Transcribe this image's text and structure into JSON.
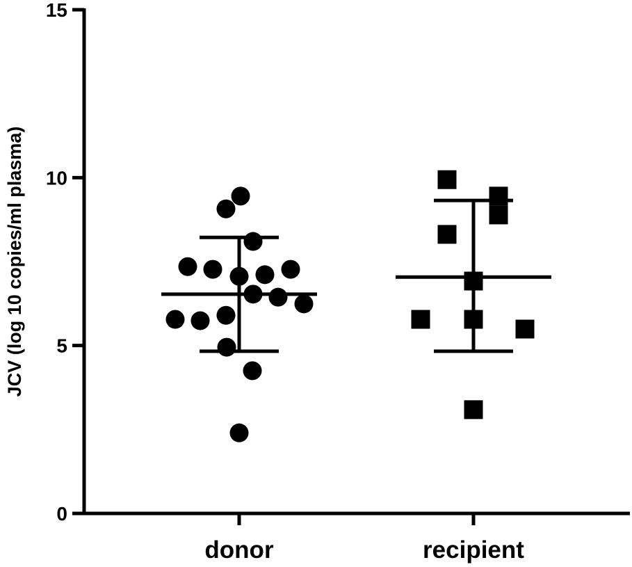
{
  "chart_data": {
    "type": "scatter",
    "subtype": "dot-plot with mean and SD",
    "title": "",
    "xlabel": "",
    "ylabel": "JCV (log 10 copies/ml plasma)",
    "ylim": [
      0,
      15
    ],
    "yticks": [
      0,
      5,
      10,
      15
    ],
    "grid": false,
    "categories": [
      "donor",
      "recipient"
    ],
    "series": [
      {
        "name": "donor",
        "marker": "circle",
        "values": [
          9.45,
          9.07,
          8.1,
          7.35,
          7.27,
          7.06,
          7.11,
          7.27,
          6.53,
          6.44,
          6.24,
          5.78,
          5.74,
          5.9,
          4.95,
          4.25,
          2.4
        ],
        "mean": 6.53,
        "sd_upper": 8.22,
        "sd_lower": 4.83
      },
      {
        "name": "recipient",
        "marker": "square",
        "values": [
          9.94,
          9.45,
          8.89,
          8.31,
          6.92,
          5.78,
          5.78,
          5.49,
          3.09
        ],
        "mean": 7.04,
        "sd_upper": 9.32,
        "sd_lower": 4.83
      }
    ]
  }
}
